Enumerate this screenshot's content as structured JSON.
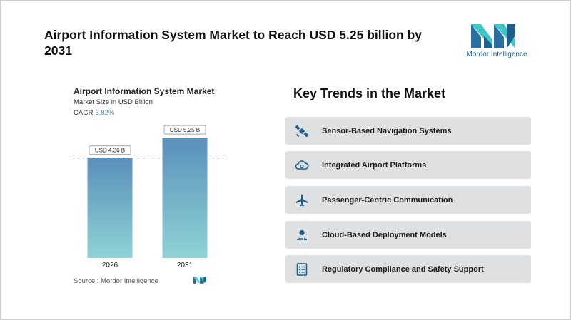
{
  "headline": "Airport Information System Market to Reach USD 5.25 billion by 2031",
  "logo": {
    "text": "Mordor Intelligence"
  },
  "chart_data": {
    "type": "bar",
    "title": "Airport Information System Market",
    "subtitle": "Market Size in USD Billion",
    "cagr_label": "CAGR",
    "cagr_value": "3.82%",
    "categories": [
      "2026",
      "2031"
    ],
    "values": [
      4.36,
      5.25
    ],
    "data_labels": [
      "USD 4.36 B",
      "USD 5.25 B"
    ],
    "ylim": [
      0,
      5.5
    ],
    "grid": false,
    "reference_line": 4.36,
    "colors": {
      "bar_top": "#5a8fba",
      "bar_bottom": "#8fd3d6"
    }
  },
  "source": "Source :  Mordor Intelligence",
  "trends": {
    "title": "Key Trends in the Market",
    "items": [
      {
        "label": "Sensor-Based Navigation Systems",
        "icon": "satellite-icon"
      },
      {
        "label": "Integrated Airport Platforms",
        "icon": "cloud-sync-icon"
      },
      {
        "label": "Passenger-Centric Communication",
        "icon": "airplane-icon"
      },
      {
        "label": "Cloud-Based Deployment Models",
        "icon": "user-monitor-icon"
      },
      {
        "label": "Regulatory Compliance and Safety Support",
        "icon": "checklist-icon"
      }
    ]
  }
}
